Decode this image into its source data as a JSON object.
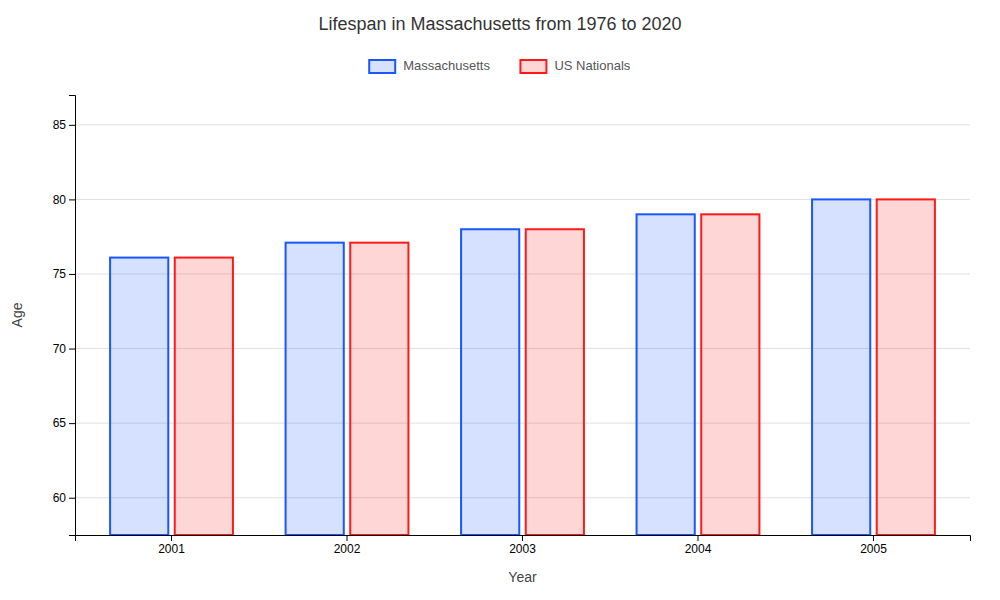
{
  "chart_data": {
    "type": "bar",
    "title": "Lifespan in Massachusetts from 1976 to 2020",
    "x_label": "Year",
    "y_label": "Age",
    "categories": [
      "2001",
      "2002",
      "2003",
      "2004",
      "2005"
    ],
    "series": [
      {
        "name": "Massachusetts",
        "color": "#1a56ff",
        "values": [
          76.1,
          77.1,
          78.0,
          79.0,
          80.0
        ]
      },
      {
        "name": "US Nationals",
        "color": "#ff1a1a",
        "values": [
          76.1,
          77.1,
          78.0,
          79.0,
          80.0
        ]
      }
    ],
    "ylim": [
      57.5,
      87
    ],
    "yticks": [
      60,
      65,
      70,
      75,
      80,
      85
    ],
    "grid": true,
    "legend": "top"
  }
}
